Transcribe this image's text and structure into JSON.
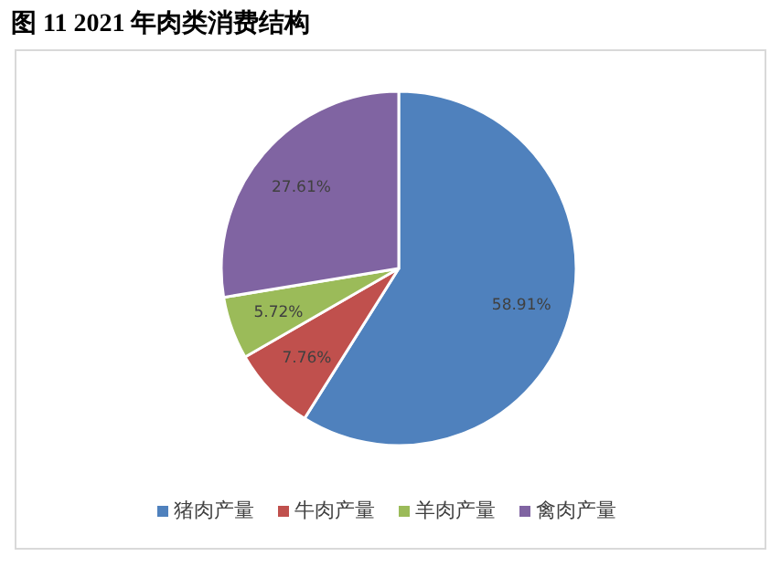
{
  "chart_data": {
    "type": "pie",
    "title": "图 11 2021 年肉类消费结构",
    "categories": [
      "猪肉产量",
      "牛肉产量",
      "羊肉产量",
      "禽肉产量"
    ],
    "values": [
      58.91,
      7.76,
      5.72,
      27.61
    ],
    "colors": [
      "#4f81bd",
      "#c0504d",
      "#9bbb59",
      "#8064a2"
    ],
    "value_labels": [
      "58.91%",
      "7.76%",
      "5.72%",
      "27.61%"
    ],
    "legend": "bottom"
  }
}
